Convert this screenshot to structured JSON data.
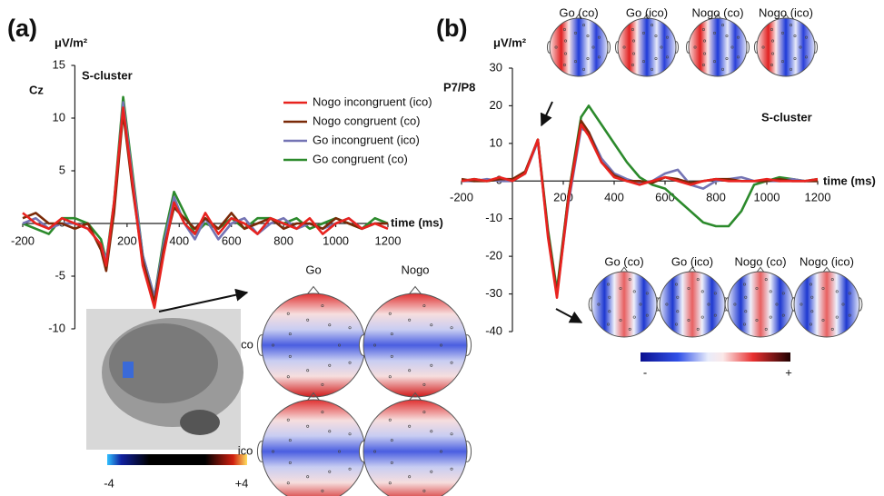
{
  "chart_data": [
    {
      "type": "line",
      "panel_label": "(a)",
      "y_label": "μV/m²",
      "x_label": "time (ms)",
      "annotations": [
        "Cz",
        "S-cluster"
      ],
      "x": [
        -200,
        -150,
        -100,
        -50,
        0,
        50,
        100,
        120,
        150,
        185,
        220,
        260,
        305,
        340,
        380,
        420,
        460,
        500,
        550,
        600,
        650,
        700,
        750,
        800,
        850,
        900,
        950,
        1000,
        1050,
        1100,
        1150,
        1200
      ],
      "series": [
        {
          "name": "Nogo incongruent (ico)",
          "color": "#e8231f",
          "values": [
            1,
            0,
            -0.5,
            0.5,
            0,
            -0.5,
            -2,
            -4,
            2,
            11,
            4,
            -4,
            -8,
            -3,
            2,
            0,
            -1,
            1,
            -1,
            0.5,
            0,
            -1,
            0.5,
            0,
            -0.5,
            0.5,
            -1,
            0,
            0.5,
            -0.5,
            0,
            -0.5
          ]
        },
        {
          "name": "Nogo congruent (co)",
          "color": "#7a2a08",
          "values": [
            0.5,
            1,
            0,
            0,
            -0.5,
            0,
            -2.5,
            -4.5,
            1,
            10.5,
            3.5,
            -3.5,
            -7.5,
            -2.5,
            1.5,
            0.5,
            -0.5,
            0.5,
            -0.5,
            1,
            -0.5,
            0,
            0.5,
            -0.5,
            0,
            0,
            -0.5,
            0.5,
            0,
            -0.5,
            0,
            0
          ]
        },
        {
          "name": "Go incongruent (ico)",
          "color": "#7474b4",
          "values": [
            0,
            0.5,
            -0.5,
            0,
            0,
            -0.5,
            -2,
            -3.5,
            1.5,
            11.5,
            4.5,
            -3,
            -7,
            -2,
            2.5,
            0,
            -1.5,
            0.5,
            -1.5,
            0,
            0.5,
            -1,
            0,
            0.5,
            -0.5,
            0,
            -0.5,
            0,
            0.5,
            -0.5,
            0,
            0
          ]
        },
        {
          "name": "Go congruent (co)",
          "color": "#2c8a2c",
          "values": [
            0,
            -0.5,
            -1,
            0.5,
            0.5,
            0,
            -1.5,
            -3.5,
            2,
            12,
            5,
            -3,
            -7,
            -1.5,
            3,
            1,
            -1,
            0,
            -0.5,
            0.5,
            -0.5,
            0.5,
            0.5,
            0,
            0.5,
            -0.5,
            0,
            0.5,
            0,
            -0.5,
            0.5,
            0
          ]
        }
      ],
      "xlim": [
        -200,
        1200
      ],
      "xticks": [
        -200,
        200,
        400,
        600,
        800,
        1000,
        1200
      ],
      "ylim": [
        -10,
        15
      ],
      "yticks": [
        -10,
        -5,
        0,
        5,
        10,
        15
      ],
      "topomap_columns": [
        "Go",
        "Nogo"
      ],
      "topomap_rows": [
        "co",
        "ico"
      ],
      "colorbar_labels": [
        "-4",
        "+4"
      ]
    },
    {
      "type": "line",
      "panel_label": "(b)",
      "y_label": "μV/m²",
      "x_label": "time (ms)",
      "annotations": [
        "P7/P8",
        "S-cluster"
      ],
      "x": [
        -200,
        -150,
        -100,
        -50,
        0,
        50,
        100,
        140,
        175,
        220,
        270,
        300,
        350,
        400,
        450,
        500,
        550,
        600,
        650,
        700,
        750,
        800,
        850,
        900,
        950,
        1000,
        1050,
        1100,
        1150,
        1200
      ],
      "series": [
        {
          "color": "#e8231f",
          "values": [
            0,
            0.5,
            0,
            1,
            0,
            2,
            11,
            -15,
            -31,
            -5,
            15,
            12,
            5,
            1,
            0,
            -1,
            0,
            1,
            0,
            -1,
            0,
            0.5,
            0,
            0,
            0,
            0.5,
            0,
            0,
            0,
            0.5
          ]
        },
        {
          "color": "#7a2a08",
          "values": [
            0.5,
            0,
            0,
            0.5,
            0.5,
            2.5,
            11,
            -14,
            -30,
            -4,
            16,
            13,
            5,
            1.5,
            0,
            0,
            -0.5,
            1,
            0.5,
            -0.5,
            0,
            0.5,
            0.5,
            0,
            0,
            0,
            0.5,
            0,
            0,
            0
          ]
        },
        {
          "color": "#7474b4",
          "values": [
            0,
            0,
            0.5,
            0,
            0,
            2,
            10.5,
            -14,
            -30,
            -6,
            14,
            13,
            6,
            2,
            0.5,
            -0.5,
            0,
            2,
            3,
            -1,
            -2,
            0,
            0.5,
            1,
            0,
            0,
            0,
            0.5,
            0,
            0
          ]
        },
        {
          "color": "#2c8a2c",
          "values": [
            0,
            0.5,
            0,
            0.5,
            0,
            2,
            11,
            -13,
            -29,
            -4,
            17,
            20,
            15,
            10,
            5,
            1,
            -1,
            -2,
            -5,
            -8,
            -11,
            -12,
            -12,
            -8,
            -1,
            0,
            1,
            0.5,
            0,
            0.5
          ]
        }
      ],
      "xlim": [
        -200,
        1200
      ],
      "xticks": [
        -200,
        200,
        400,
        600,
        800,
        1000,
        1200
      ],
      "ylim": [
        -40,
        30
      ],
      "yticks": [
        -40,
        -30,
        -20,
        -10,
        0,
        10,
        20,
        30
      ],
      "topomap_top_labels": [
        "Go (co)",
        "Go (ico)",
        "Nogo (co)",
        "Nogo (ico)"
      ],
      "topomap_bottom_labels": [
        "Go (co)",
        "Go (ico)",
        "Nogo (co)",
        "Nogo (ico)"
      ],
      "colorbar_labels": [
        "-",
        "+"
      ]
    }
  ]
}
